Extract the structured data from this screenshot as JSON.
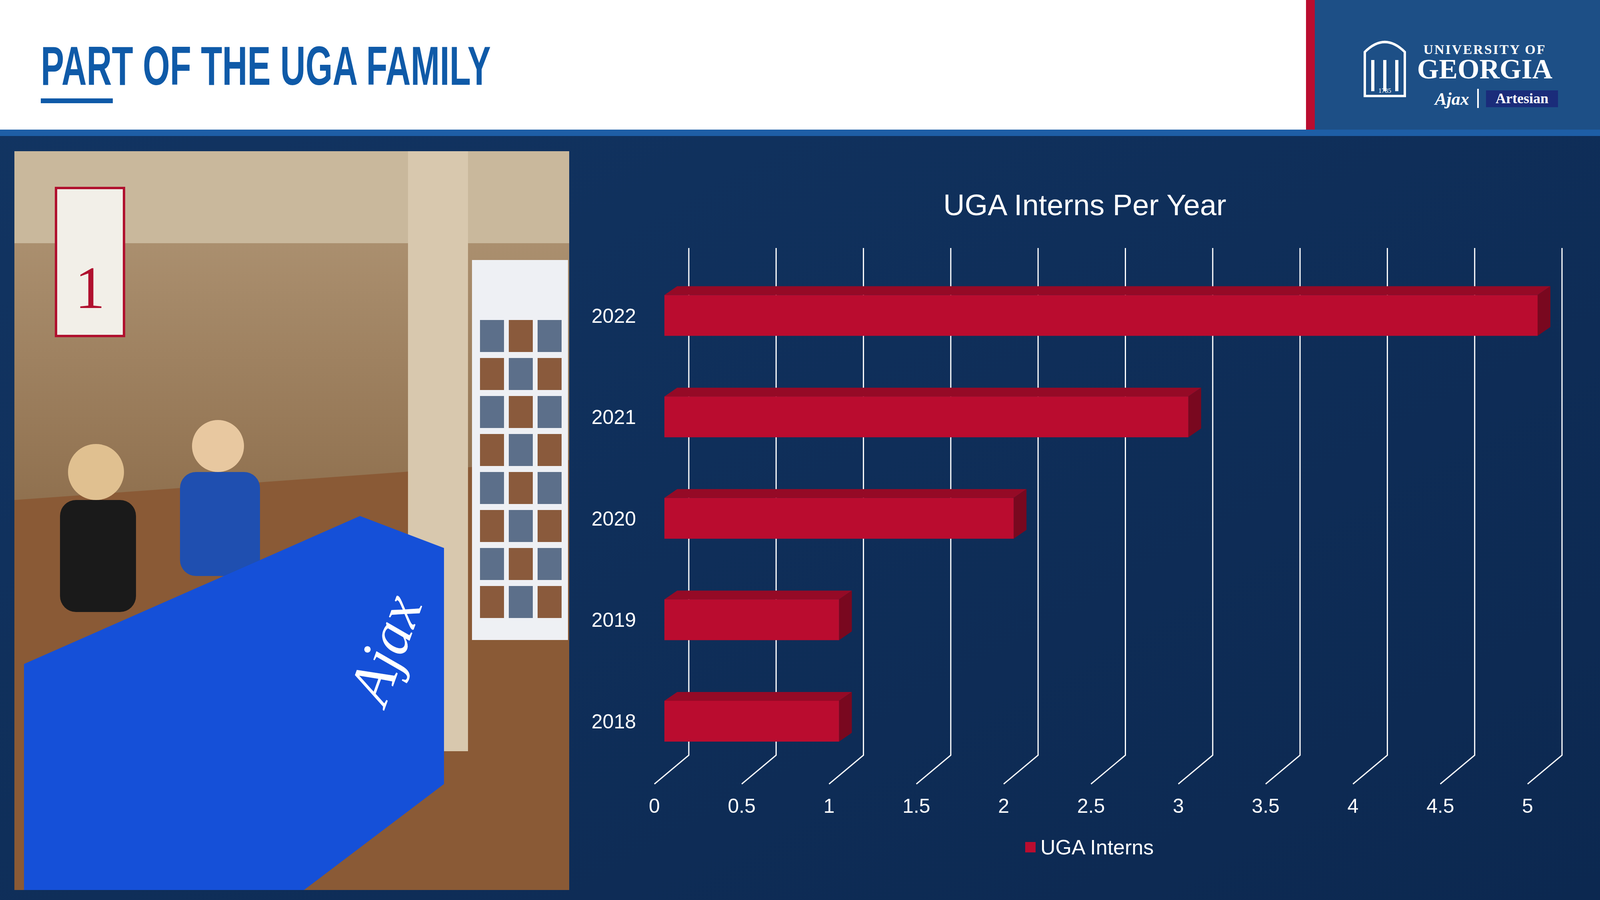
{
  "header": {
    "title": "PART OF THE UGA FAMILY"
  },
  "logo": {
    "line1": "UNIVERSITY OF",
    "line2": "GEORGIA",
    "year": "1785",
    "brand1": "Ajax",
    "brand2": "Artesian"
  },
  "photo": {
    "banner_text": "1",
    "table_text": "Ajax"
  },
  "chart_data": {
    "type": "bar",
    "title": "UGA Interns Per Year",
    "orientation": "horizontal",
    "categories": [
      "2018",
      "2019",
      "2020",
      "2021",
      "2022"
    ],
    "series": [
      {
        "name": "UGA Interns",
        "color": "#ba0c2f",
        "values": [
          1,
          1,
          2,
          3,
          5
        ]
      }
    ],
    "xlim": [
      0,
      5
    ],
    "xticks": [
      0,
      0.5,
      1,
      1.5,
      2,
      2.5,
      3,
      3.5,
      4,
      4.5,
      5
    ],
    "grid": true,
    "legend": "bottom"
  }
}
